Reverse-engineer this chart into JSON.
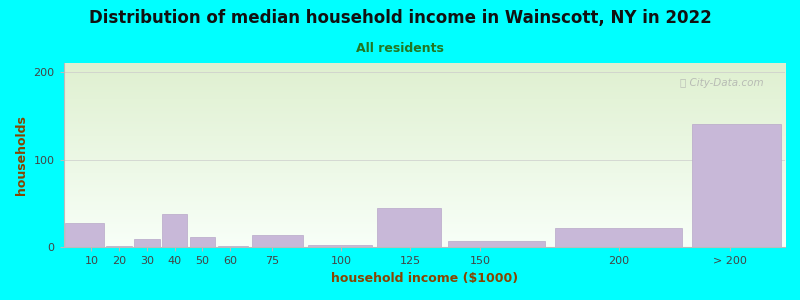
{
  "title": "Distribution of median household income in Wainscott, NY in 2022",
  "subtitle": "All residents",
  "xlabel": "household income ($1000)",
  "ylabel": "households",
  "background_color": "#00FFFF",
  "plot_bg_gradient_top": "#dff0d0",
  "plot_bg_gradient_bottom": "#f8fff8",
  "bar_color": "#c8b8d8",
  "bar_edge_color": "#b8a8c8",
  "title_color": "#111111",
  "subtitle_color": "#227722",
  "axis_label_color": "#884400",
  "tick_color": "#444444",
  "categories": [
    "10",
    "20",
    "30",
    "40",
    "50",
    "60",
    "75",
    "100",
    "125",
    "150",
    "200",
    "> 200"
  ],
  "x_centers": [
    10,
    20,
    30,
    40,
    50,
    60,
    75,
    100,
    125,
    150,
    200,
    240
  ],
  "x_edges": [
    0,
    15,
    25,
    35,
    45,
    55,
    67,
    87,
    112,
    137,
    175,
    225,
    260
  ],
  "values": [
    28,
    2,
    10,
    38,
    12,
    2,
    14,
    3,
    45,
    7,
    22,
    140
  ],
  "ylim": [
    0,
    210
  ],
  "yticks": [
    0,
    100,
    200
  ],
  "watermark": "ⓘ City-Data.com",
  "title_fontsize": 12,
  "subtitle_fontsize": 9,
  "axis_label_fontsize": 9,
  "tick_fontsize": 8
}
